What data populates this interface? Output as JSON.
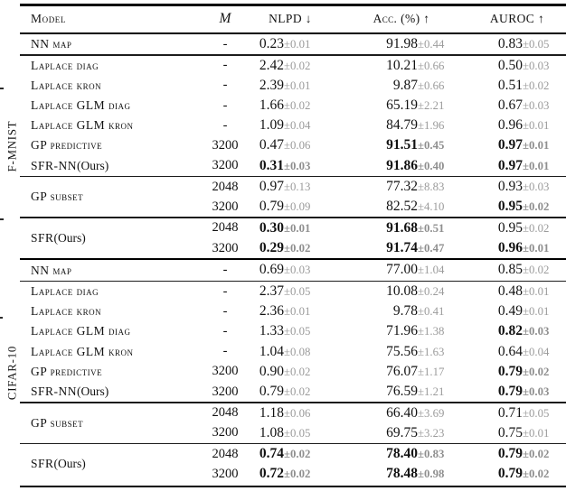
{
  "table": {
    "headers": {
      "model": "Model",
      "m": "M",
      "nlpd": "NLPD ↓",
      "acc": "Acc. (%) ↑",
      "auroc": "AUROC ↑"
    },
    "groups": [
      {
        "label": "F-MNIST",
        "rows": [
          {
            "model": "NN map",
            "plain": "",
            "span": 1,
            "cont": false,
            "rule": false,
            "m": "-",
            "nlpd": "0.23",
            "nlpd_e": "±0.01",
            "nlpd_b": false,
            "acc": "91.98",
            "acc_e": "±0.44",
            "acc_b": false,
            "auroc": "0.83",
            "auroc_e": "±0.05",
            "auroc_b": false
          },
          {
            "model": "Laplace diag",
            "plain": "",
            "span": 1,
            "cont": false,
            "rule": true,
            "m": "-",
            "nlpd": "2.42",
            "nlpd_e": "±0.02",
            "nlpd_b": false,
            "acc": "10.21",
            "acc_e": "±0.66",
            "acc_b": false,
            "auroc": "0.50",
            "auroc_e": "±0.03",
            "auroc_b": false
          },
          {
            "model": "Laplace kron",
            "plain": "",
            "span": 1,
            "cont": false,
            "rule": false,
            "m": "-",
            "nlpd": "2.39",
            "nlpd_e": "±0.01",
            "nlpd_b": false,
            "acc": "9.87",
            "acc_e": "±0.66",
            "acc_b": false,
            "auroc": "0.51",
            "auroc_e": "±0.02",
            "auroc_b": false
          },
          {
            "model": "Laplace GLM diag",
            "plain": "",
            "span": 1,
            "cont": false,
            "rule": false,
            "m": "-",
            "nlpd": "1.66",
            "nlpd_e": "±0.02",
            "nlpd_b": false,
            "acc": "65.19",
            "acc_e": "±2.21",
            "acc_b": false,
            "auroc": "0.67",
            "auroc_e": "±0.03",
            "auroc_b": false
          },
          {
            "model": "Laplace GLM kron",
            "plain": "",
            "span": 1,
            "cont": false,
            "rule": false,
            "m": "-",
            "nlpd": "1.09",
            "nlpd_e": "±0.04",
            "nlpd_b": false,
            "acc": "84.79",
            "acc_e": "±1.96",
            "acc_b": false,
            "auroc": "0.96",
            "auroc_e": "±0.01",
            "auroc_b": false
          },
          {
            "model": "GP predictive",
            "plain": "",
            "span": 1,
            "cont": false,
            "rule": false,
            "m": "3200",
            "nlpd": "0.47",
            "nlpd_e": "±0.06",
            "nlpd_b": false,
            "acc": "91.51",
            "acc_e": "±0.45",
            "acc_b": true,
            "auroc": "0.97",
            "auroc_e": "±0.01",
            "auroc_b": true
          },
          {
            "model": "SFR-NN",
            "plain": " (Ours)",
            "span": 1,
            "cont": false,
            "rule": false,
            "m": "3200",
            "nlpd": "0.31",
            "nlpd_e": "±0.03",
            "nlpd_b": true,
            "acc": "91.86",
            "acc_e": "±0.40",
            "acc_b": true,
            "auroc": "0.97",
            "auroc_e": "±0.01",
            "auroc_b": true
          },
          {
            "model": "GP subset",
            "plain": "",
            "span": 2,
            "cont": false,
            "rule": true,
            "m": "2048",
            "nlpd": "0.97",
            "nlpd_e": "±0.13",
            "nlpd_b": false,
            "acc": "77.32",
            "acc_e": "±8.83",
            "acc_b": false,
            "auroc": "0.93",
            "auroc_e": "±0.03",
            "auroc_b": false
          },
          {
            "model": null,
            "plain": "",
            "span": 1,
            "cont": true,
            "rule": false,
            "m": "3200",
            "nlpd": "0.79",
            "nlpd_e": "±0.09",
            "nlpd_b": false,
            "acc": "82.52",
            "acc_e": "±4.10",
            "acc_b": false,
            "auroc": "0.95",
            "auroc_e": "±0.02",
            "auroc_b": true
          },
          {
            "model": "SFR",
            "plain": " (Ours)",
            "span": 2,
            "cont": false,
            "rule": true,
            "m": "2048",
            "nlpd": "0.30",
            "nlpd_e": "±0.01",
            "nlpd_b": true,
            "acc": "91.68",
            "acc_e": "±0.51",
            "acc_b": true,
            "auroc": "0.95",
            "auroc_e": "±0.02",
            "auroc_b": false
          },
          {
            "model": null,
            "plain": "",
            "span": 1,
            "cont": true,
            "rule": false,
            "m": "3200",
            "nlpd": "0.29",
            "nlpd_e": "±0.02",
            "nlpd_b": true,
            "acc": "91.74",
            "acc_e": "±0.47",
            "acc_b": true,
            "auroc": "0.96",
            "auroc_e": "±0.01",
            "auroc_b": true
          }
        ]
      },
      {
        "label": "CIFAR-10",
        "rows": [
          {
            "model": "NN map",
            "plain": "",
            "span": 1,
            "cont": false,
            "rule": false,
            "m": "-",
            "nlpd": "0.69",
            "nlpd_e": "±0.03",
            "nlpd_b": false,
            "acc": "77.00",
            "acc_e": "±1.04",
            "acc_b": false,
            "auroc": "0.85",
            "auroc_e": "±0.02",
            "auroc_b": false
          },
          {
            "model": "Laplace diag",
            "plain": "",
            "span": 1,
            "cont": false,
            "rule": true,
            "m": "-",
            "nlpd": "2.37",
            "nlpd_e": "±0.05",
            "nlpd_b": false,
            "acc": "10.08",
            "acc_e": "±0.24",
            "acc_b": false,
            "auroc": "0.48",
            "auroc_e": "±0.01",
            "auroc_b": false
          },
          {
            "model": "Laplace kron",
            "plain": "",
            "span": 1,
            "cont": false,
            "rule": false,
            "m": "-",
            "nlpd": "2.36",
            "nlpd_e": "±0.01",
            "nlpd_b": false,
            "acc": "9.78",
            "acc_e": "±0.41",
            "acc_b": false,
            "auroc": "0.49",
            "auroc_e": "±0.01",
            "auroc_b": false
          },
          {
            "model": "Laplace GLM diag",
            "plain": "",
            "span": 1,
            "cont": false,
            "rule": false,
            "m": "-",
            "nlpd": "1.33",
            "nlpd_e": "±0.05",
            "nlpd_b": false,
            "acc": "71.96",
            "acc_e": "±1.38",
            "acc_b": false,
            "auroc": "0.82",
            "auroc_e": "±0.03",
            "auroc_b": true
          },
          {
            "model": "Laplace GLM kron",
            "plain": "",
            "span": 1,
            "cont": false,
            "rule": false,
            "m": "-",
            "nlpd": "1.04",
            "nlpd_e": "±0.08",
            "nlpd_b": false,
            "acc": "75.56",
            "acc_e": "±1.63",
            "acc_b": false,
            "auroc": "0.64",
            "auroc_e": "±0.04",
            "auroc_b": false
          },
          {
            "model": "GP predictive",
            "plain": "",
            "span": 1,
            "cont": false,
            "rule": false,
            "m": "3200",
            "nlpd": "0.90",
            "nlpd_e": "±0.02",
            "nlpd_b": false,
            "acc": "76.07",
            "acc_e": "±1.17",
            "acc_b": false,
            "auroc": "0.79",
            "auroc_e": "±0.02",
            "auroc_b": true
          },
          {
            "model": "SFR-NN",
            "plain": " (Ours)",
            "span": 1,
            "cont": false,
            "rule": false,
            "m": "3200",
            "nlpd": "0.79",
            "nlpd_e": "±0.02",
            "nlpd_b": false,
            "acc": "76.59",
            "acc_e": "±1.21",
            "acc_b": false,
            "auroc": "0.79",
            "auroc_e": "±0.03",
            "auroc_b": true
          },
          {
            "model": "GP subset",
            "plain": "",
            "span": 2,
            "cont": false,
            "rule": true,
            "m": "2048",
            "nlpd": "1.18",
            "nlpd_e": "±0.06",
            "nlpd_b": false,
            "acc": "66.40",
            "acc_e": "±3.69",
            "acc_b": false,
            "auroc": "0.71",
            "auroc_e": "±0.05",
            "auroc_b": false
          },
          {
            "model": null,
            "plain": "",
            "span": 1,
            "cont": true,
            "rule": false,
            "m": "3200",
            "nlpd": "1.08",
            "nlpd_e": "±0.05",
            "nlpd_b": false,
            "acc": "69.75",
            "acc_e": "±3.23",
            "acc_b": false,
            "auroc": "0.75",
            "auroc_e": "±0.01",
            "auroc_b": false
          },
          {
            "model": "SFR",
            "plain": " (Ours)",
            "span": 2,
            "cont": false,
            "rule": true,
            "m": "2048",
            "nlpd": "0.74",
            "nlpd_e": "±0.02",
            "nlpd_b": true,
            "acc": "78.40",
            "acc_e": "±0.83",
            "acc_b": true,
            "auroc": "0.79",
            "auroc_e": "±0.02",
            "auroc_b": true
          },
          {
            "model": null,
            "plain": "",
            "span": 1,
            "cont": true,
            "rule": false,
            "m": "3200",
            "nlpd": "0.72",
            "nlpd_e": "±0.02",
            "nlpd_b": true,
            "acc": "78.48",
            "acc_e": "±0.98",
            "acc_b": true,
            "auroc": "0.79",
            "auroc_e": "±0.02",
            "auroc_b": true
          }
        ]
      }
    ]
  }
}
